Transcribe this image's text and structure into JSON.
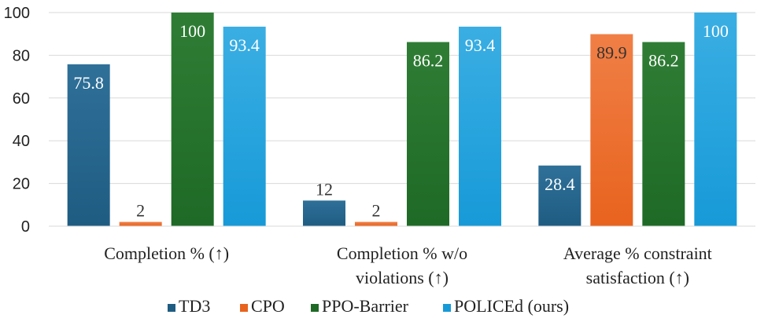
{
  "chart_data": {
    "type": "bar",
    "title": "",
    "xlabel": "",
    "ylabel": "",
    "ylim": [
      0,
      100
    ],
    "yticks": [
      "0",
      "20",
      "40",
      "60",
      "80",
      "100"
    ],
    "grid": "horizontal",
    "legend_position": "bottom",
    "categories": [
      [
        "Completion %  (↑)"
      ],
      [
        "Completion % w/o",
        "violations  (↑)"
      ],
      [
        "Average % constraint",
        "satisfaction  (↑)"
      ]
    ],
    "series": [
      {
        "name": "TD3",
        "values": [
          75.8,
          12,
          28.4
        ],
        "labels": [
          "75.8",
          "12",
          "28.4"
        ],
        "color": "#1f5c82",
        "color_light": "#2f7099",
        "label_color": "#ffffff"
      },
      {
        "name": "CPO",
        "values": [
          2,
          2,
          89.9
        ],
        "labels": [
          "2",
          "2",
          "89.9"
        ],
        "color": "#e8631e",
        "color_light": "#f07f46",
        "label_color": "#333333"
      },
      {
        "name": "PPO-Barrier",
        "values": [
          100,
          86.2,
          86.2
        ],
        "labels": [
          "100",
          "86.2",
          "86.2"
        ],
        "color": "#1e6a26",
        "color_light": "#2f7d35",
        "label_color": "#ffffff"
      },
      {
        "name": "POLICEd (ours)",
        "values": [
          93.4,
          93.4,
          100
        ],
        "labels": [
          "93.4",
          "93.4",
          "100"
        ],
        "color": "#179ad8",
        "color_light": "#3aaee3",
        "label_color": "#ffffff"
      }
    ]
  }
}
